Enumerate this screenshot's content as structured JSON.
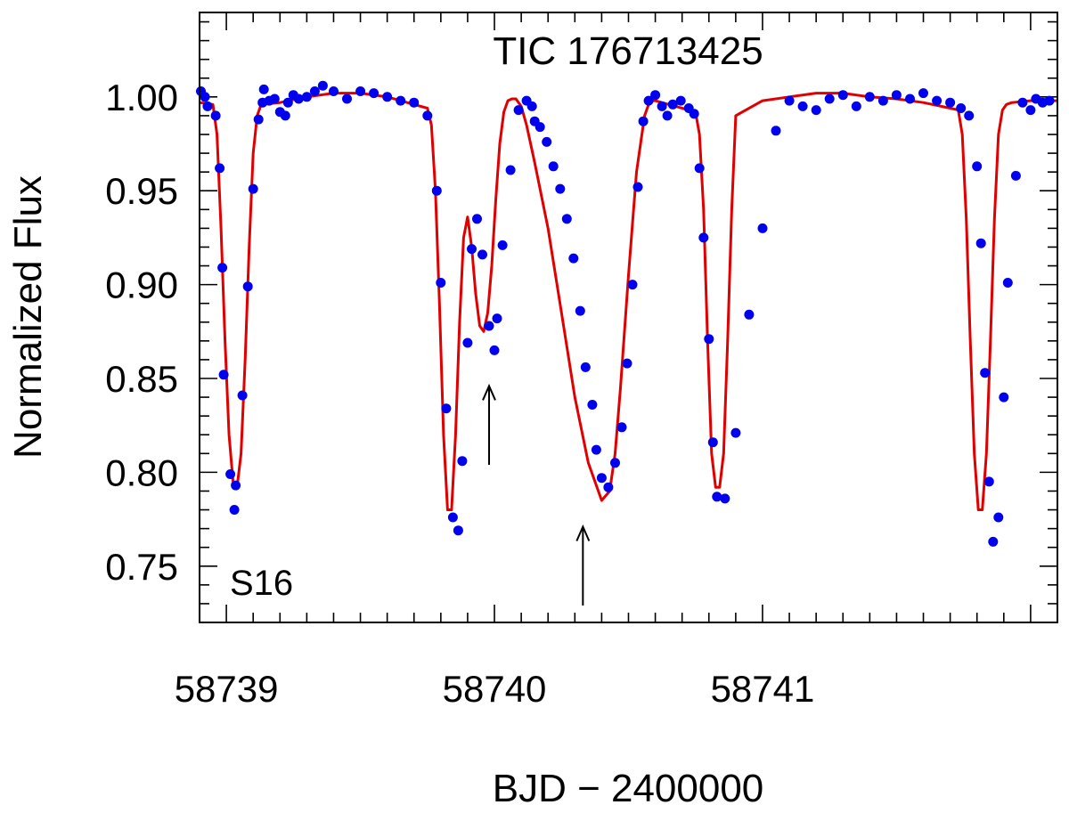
{
  "chart_data": {
    "type": "scatter",
    "title": "TIC 176713425",
    "xlabel": "BJD − 2400000",
    "ylabel": "Normalized Flux",
    "annotation": "S16",
    "xlim": [
      58738.9,
      58742.1
    ],
    "ylim": [
      0.72,
      1.045
    ],
    "x_major_ticks": [
      58739,
      58740,
      58741
    ],
    "x_tick_labels": [
      "58739",
      "58740",
      "58741"
    ],
    "x_minor_step": 0.1,
    "y_major_ticks": [
      0.75,
      0.8,
      0.85,
      0.9,
      0.95,
      1.0
    ],
    "y_tick_labels": [
      "0.75",
      "0.80",
      "0.85",
      "0.90",
      "0.95",
      "1.00"
    ],
    "y_minor_step": 0.01,
    "grid": false,
    "series": [
      {
        "kind": "points",
        "color": "#0000ee",
        "x": [
          58738.905,
          58738.92,
          58738.93,
          58738.96,
          58738.975,
          58738.985,
          58738.99,
          58739.015,
          58739.03,
          58739.035,
          58739.06,
          58739.08,
          58739.1,
          58739.12,
          58739.135,
          58739.14,
          58739.16,
          58739.18,
          58739.2,
          58739.22,
          58739.23,
          58739.25,
          58739.27,
          58739.3,
          58739.33,
          58739.36,
          58739.4,
          58739.45,
          58739.5,
          58739.55,
          58739.6,
          58739.65,
          58739.7,
          58739.75,
          58739.785,
          58739.8,
          58739.82,
          58739.845,
          58739.865,
          58739.88,
          58739.9,
          58739.915,
          58739.935,
          58739.955,
          58739.98,
          58740.0,
          58740.01,
          58740.03,
          58740.06,
          58740.09,
          58740.12,
          58740.14,
          58740.15,
          58740.17,
          58740.195,
          58740.22,
          58740.245,
          58740.27,
          58740.295,
          58740.32,
          58740.34,
          58740.365,
          58740.38,
          58740.4,
          58740.425,
          58740.45,
          58740.475,
          58740.495,
          58740.515,
          58740.535,
          58740.555,
          58740.575,
          58740.6,
          58740.625,
          58740.645,
          58740.665,
          58740.695,
          58740.725,
          58740.745,
          58740.765,
          58740.78,
          58740.8,
          58740.815,
          58740.83,
          58740.86,
          58740.9,
          58740.95,
          58741.0,
          58741.05,
          58741.1,
          58741.15,
          58741.2,
          58741.25,
          58741.3,
          58741.35,
          58741.4,
          58741.45,
          58741.5,
          58741.55,
          58741.6,
          58741.65,
          58741.7,
          58741.74,
          58741.77,
          58741.8,
          58741.815,
          58741.83,
          58741.845,
          58741.86,
          58741.88,
          58741.9,
          58741.915,
          58741.945,
          58741.97,
          58742.0,
          58742.02,
          58742.045,
          58742.07
        ],
        "y": [
          1.003,
          1.0,
          0.995,
          0.99,
          0.962,
          0.909,
          0.852,
          0.799,
          0.78,
          0.793,
          0.841,
          0.899,
          0.951,
          0.988,
          0.997,
          1.004,
          0.998,
          0.999,
          0.992,
          0.99,
          0.997,
          1.001,
          0.999,
          1.0,
          1.003,
          1.006,
          1.003,
          0.999,
          1.003,
          1.002,
          1.0,
          0.998,
          0.997,
          0.99,
          0.95,
          0.901,
          0.834,
          0.776,
          0.769,
          0.806,
          0.869,
          0.919,
          0.935,
          0.916,
          0.878,
          0.865,
          0.882,
          0.921,
          0.961,
          0.993,
          0.998,
          0.995,
          0.987,
          0.984,
          0.976,
          0.963,
          0.951,
          0.935,
          0.914,
          0.886,
          0.856,
          0.836,
          0.812,
          0.797,
          0.792,
          0.805,
          0.824,
          0.858,
          0.9,
          0.952,
          0.987,
          0.998,
          1.001,
          0.995,
          0.99,
          0.996,
          0.998,
          0.994,
          0.991,
          0.962,
          0.925,
          0.871,
          0.816,
          0.787,
          0.786,
          0.821,
          0.884,
          0.93,
          0.982,
          0.998,
          0.995,
          0.993,
          0.999,
          1.001,
          0.995,
          1.0,
          0.998,
          1.001,
          0.999,
          1.002,
          0.998,
          0.997,
          0.994,
          0.99,
          0.963,
          0.922,
          0.853,
          0.795,
          0.763,
          0.776,
          0.84,
          0.901,
          0.958,
          0.997,
          0.993,
          0.999,
          0.997,
          0.998
        ]
      },
      {
        "kind": "model",
        "color": "#e00000",
        "x": [
          58738.9,
          58738.95,
          58738.965,
          58738.98,
          58738.995,
          58739.01,
          58739.025,
          58739.04,
          58739.055,
          58739.07,
          58739.085,
          58739.1,
          58739.115,
          58739.13,
          58739.2,
          58739.3,
          58739.4,
          58739.5,
          58739.6,
          58739.7,
          58739.75,
          58739.765,
          58739.78,
          58739.795,
          58739.81,
          58739.825,
          58739.84,
          58739.855,
          58739.87,
          58739.885,
          58739.9,
          58739.915,
          58739.93,
          58739.945,
          58739.96,
          58739.975,
          58739.99,
          58740.005,
          58740.02,
          58740.035,
          58740.05,
          58740.065,
          58740.08,
          58740.1,
          58740.12,
          58740.15,
          58740.2,
          58740.25,
          58740.3,
          58740.35,
          58740.4,
          58740.43,
          58740.45,
          58740.47,
          58740.5,
          58740.53,
          58740.56,
          58740.58,
          58740.6,
          58740.7,
          58740.75,
          58740.765,
          58740.78,
          58740.795,
          58740.81,
          58740.825,
          58740.84,
          58740.855,
          58740.87,
          58740.885,
          58740.9,
          58741.0,
          58741.1,
          58741.2,
          58741.3,
          58741.4,
          58741.5,
          58741.6,
          58741.7,
          58741.73,
          58741.745,
          58741.76,
          58741.775,
          58741.79,
          58741.805,
          58741.82,
          58741.835,
          58741.85,
          58741.865,
          58741.88,
          58741.895,
          58741.91,
          58741.93,
          58742.0,
          58742.1
        ],
        "y": [
          0.997,
          0.996,
          0.98,
          0.93,
          0.87,
          0.82,
          0.795,
          0.792,
          0.81,
          0.86,
          0.92,
          0.97,
          0.99,
          0.996,
          0.997,
          1.0,
          1.002,
          1.002,
          1.0,
          0.996,
          0.994,
          0.985,
          0.95,
          0.89,
          0.82,
          0.78,
          0.78,
          0.82,
          0.88,
          0.925,
          0.936,
          0.92,
          0.895,
          0.878,
          0.875,
          0.885,
          0.91,
          0.945,
          0.975,
          0.992,
          0.998,
          0.999,
          0.999,
          0.995,
          0.985,
          0.965,
          0.93,
          0.885,
          0.84,
          0.805,
          0.785,
          0.79,
          0.81,
          0.845,
          0.905,
          0.96,
          0.99,
          0.998,
          0.998,
          0.994,
          0.992,
          0.98,
          0.94,
          0.87,
          0.81,
          0.792,
          0.792,
          0.81,
          0.87,
          0.94,
          0.99,
          0.998,
          1.0,
          1.002,
          1.002,
          1.0,
          0.999,
          0.997,
          0.994,
          0.993,
          0.98,
          0.935,
          0.87,
          0.81,
          0.78,
          0.78,
          0.81,
          0.87,
          0.935,
          0.98,
          0.993,
          0.996,
          0.997,
          0.998,
          0.998
        ]
      }
    ],
    "arrows": [
      {
        "x": 58739.98,
        "y_from": 0.804,
        "y_to": 0.846
      },
      {
        "x": 58740.33,
        "y_from": 0.729,
        "y_to": 0.771
      }
    ]
  }
}
